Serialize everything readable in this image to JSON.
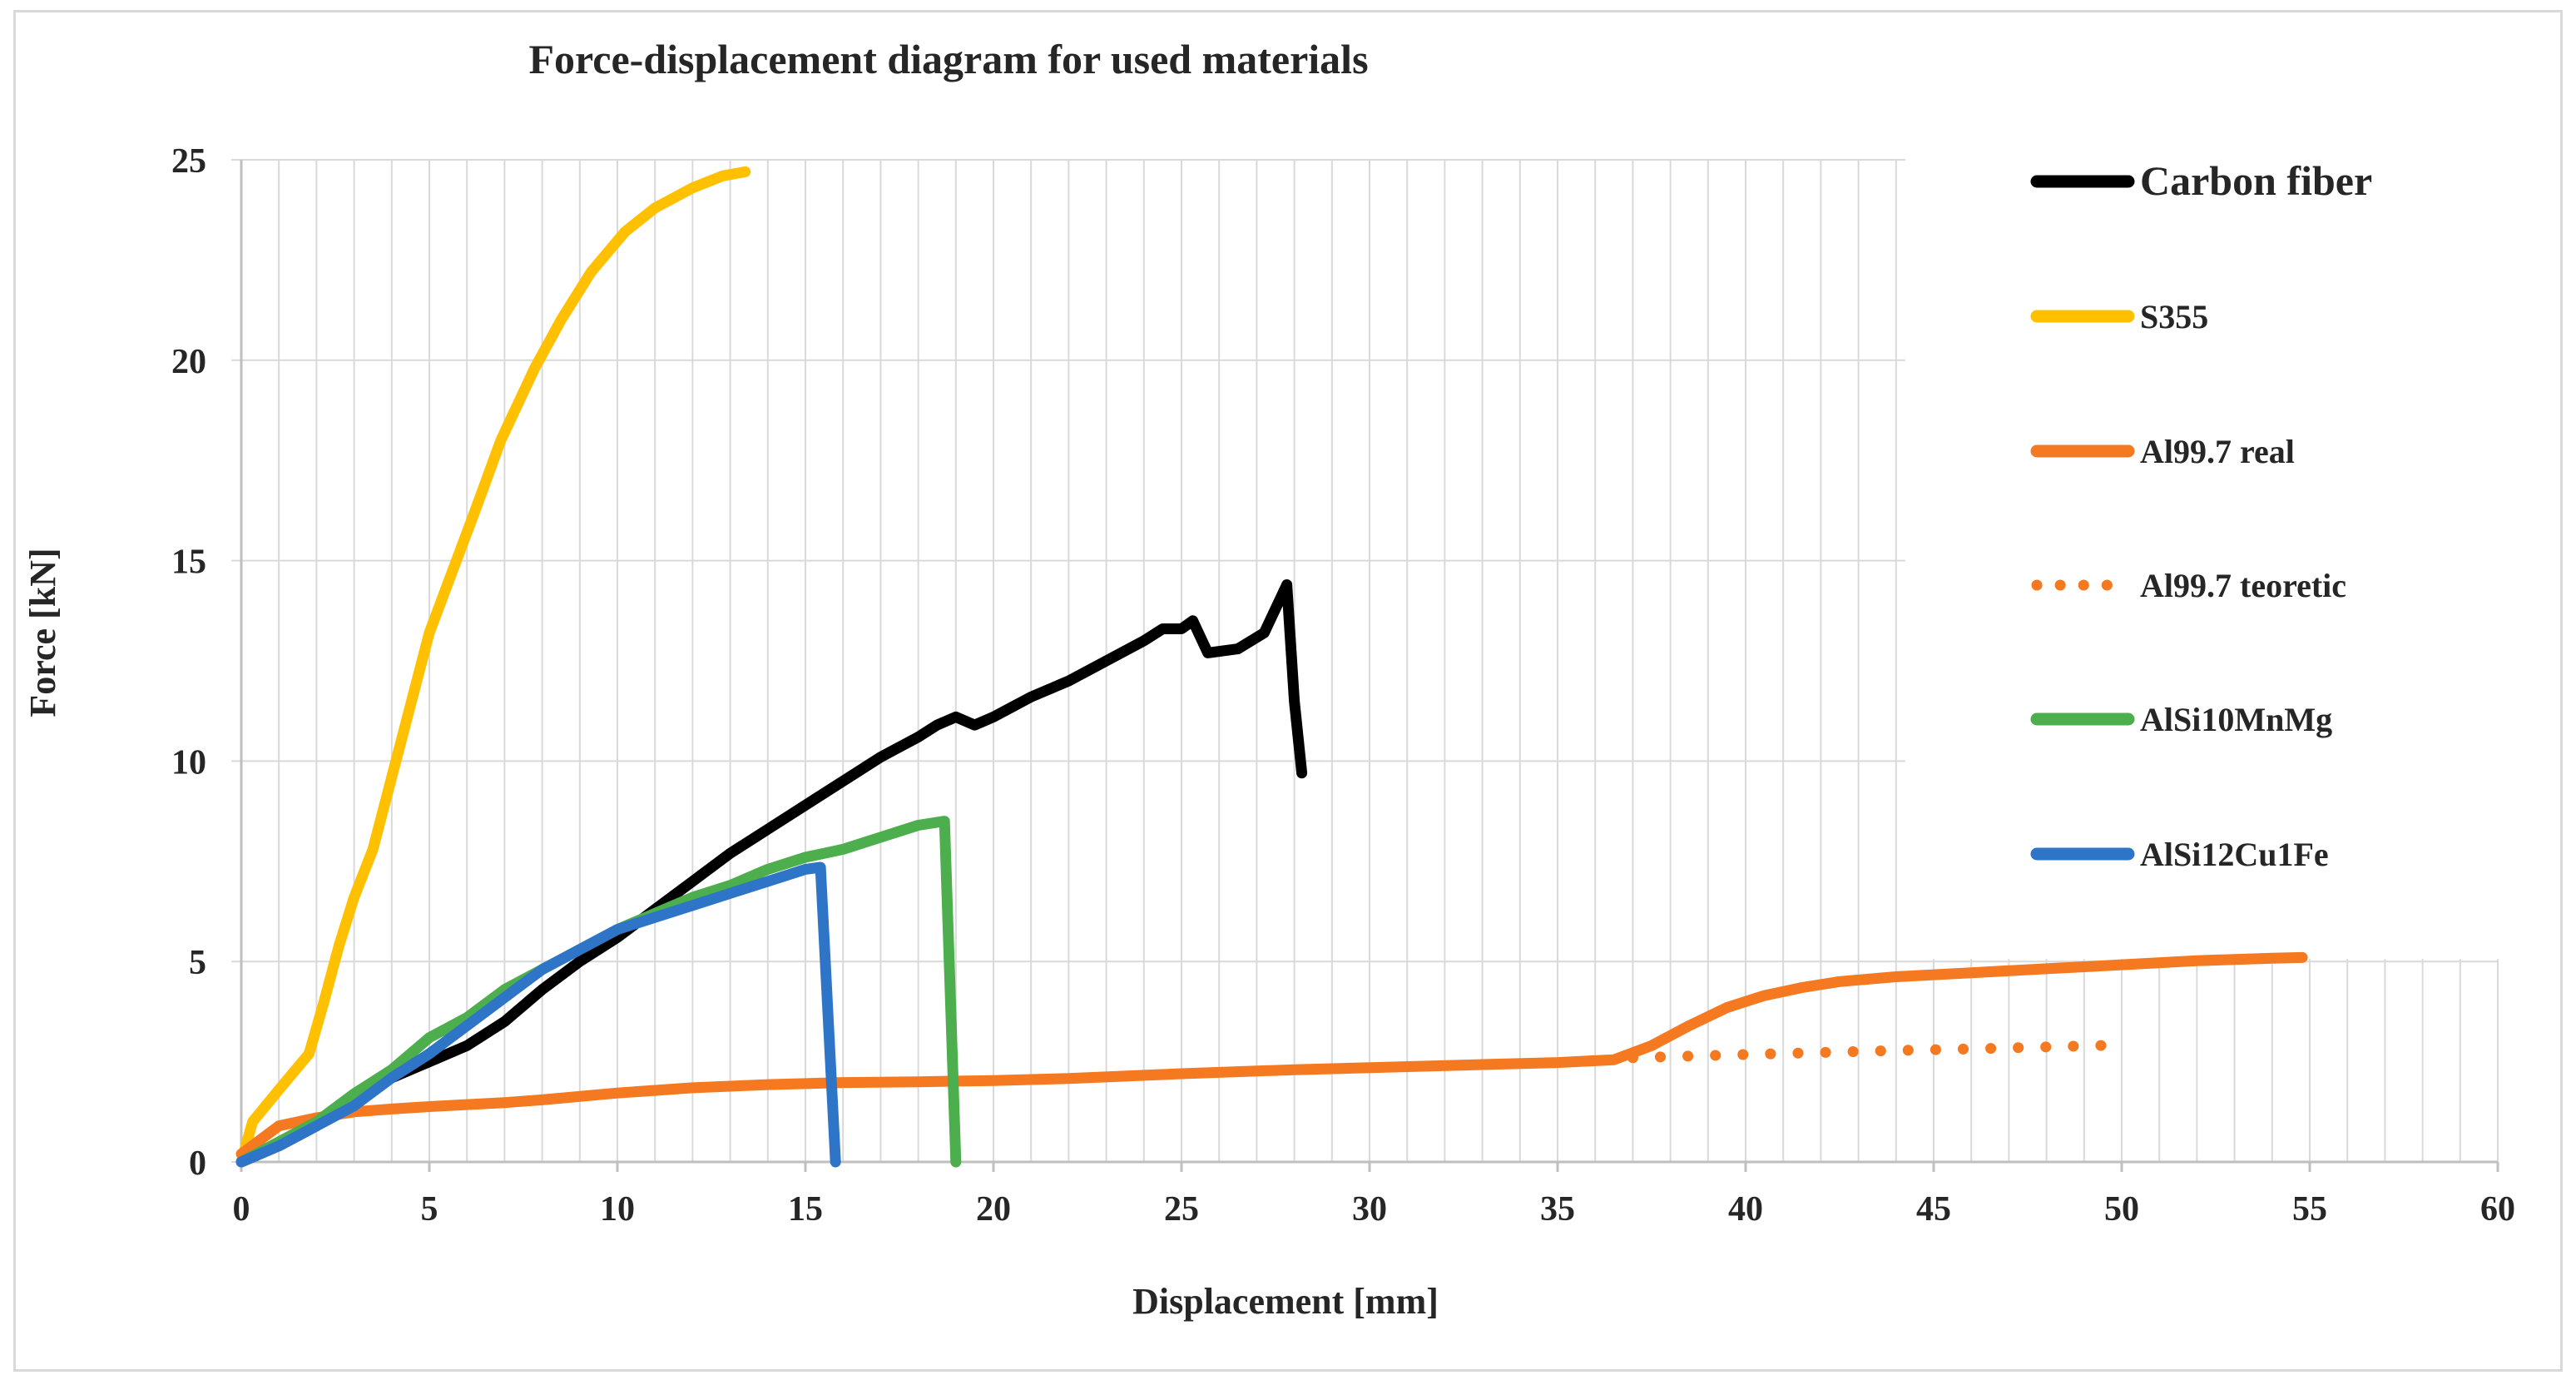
{
  "chart_data": {
    "type": "line",
    "title": "Force-displacement diagram for used materials",
    "xlabel": "Displacement [mm]",
    "ylabel": "Force [kN]",
    "xlim": [
      0,
      60
    ],
    "ylim": [
      0,
      25
    ],
    "xticks": [
      0,
      5,
      10,
      15,
      20,
      25,
      30,
      35,
      40,
      45,
      50,
      55,
      60
    ],
    "yticks": [
      0,
      5,
      10,
      15,
      20,
      25
    ],
    "x_minor_step": 1,
    "y_minor_step": 5,
    "grid": true,
    "legend_position": "right",
    "series": [
      {
        "name": "Carbon fiber",
        "color": "#000000",
        "style": "solid",
        "legend_emphasis": true,
        "points": [
          [
            0,
            0
          ],
          [
            1,
            0.4
          ],
          [
            2,
            0.9
          ],
          [
            3,
            1.5
          ],
          [
            4,
            2.1
          ],
          [
            5,
            2.5
          ],
          [
            6,
            2.9
          ],
          [
            7,
            3.5
          ],
          [
            8,
            4.3
          ],
          [
            9,
            5.0
          ],
          [
            10,
            5.6
          ],
          [
            11,
            6.3
          ],
          [
            12,
            7.0
          ],
          [
            13,
            7.7
          ],
          [
            14,
            8.3
          ],
          [
            15,
            8.9
          ],
          [
            16,
            9.5
          ],
          [
            17,
            10.1
          ],
          [
            18,
            10.6
          ],
          [
            18.5,
            10.9
          ],
          [
            19,
            11.1
          ],
          [
            19.5,
            10.9
          ],
          [
            20,
            11.1
          ],
          [
            21,
            11.6
          ],
          [
            22,
            12.0
          ],
          [
            23,
            12.5
          ],
          [
            24,
            13.0
          ],
          [
            24.5,
            13.3
          ],
          [
            25,
            13.3
          ],
          [
            25.3,
            13.5
          ],
          [
            25.7,
            12.7
          ],
          [
            26.5,
            12.8
          ],
          [
            27.2,
            13.2
          ],
          [
            27.8,
            14.4
          ],
          [
            28.0,
            11.5
          ],
          [
            28.2,
            9.7
          ]
        ]
      },
      {
        "name": "S355",
        "color": "#ffc000",
        "style": "solid",
        "legend_emphasis": false,
        "points": [
          [
            0,
            0
          ],
          [
            0.3,
            1.0
          ],
          [
            1,
            1.8
          ],
          [
            1.8,
            2.7
          ],
          [
            2.2,
            4.0
          ],
          [
            2.6,
            5.4
          ],
          [
            3,
            6.6
          ],
          [
            3.5,
            7.8
          ],
          [
            4,
            9.6
          ],
          [
            4.5,
            11.4
          ],
          [
            5,
            13.2
          ],
          [
            5.6,
            14.7
          ],
          [
            6.2,
            16.2
          ],
          [
            6.9,
            18.0
          ],
          [
            7.8,
            19.8
          ],
          [
            8.5,
            21.0
          ],
          [
            9.3,
            22.2
          ],
          [
            10.2,
            23.2
          ],
          [
            11,
            23.8
          ],
          [
            12,
            24.3
          ],
          [
            12.8,
            24.6
          ],
          [
            13.4,
            24.7
          ]
        ]
      },
      {
        "name": "Al99.7 real",
        "color": "#f47920",
        "style": "solid",
        "legend_emphasis": false,
        "points": [
          [
            0,
            0.2
          ],
          [
            1,
            0.9
          ],
          [
            2,
            1.1
          ],
          [
            3,
            1.25
          ],
          [
            4,
            1.32
          ],
          [
            5,
            1.38
          ],
          [
            6,
            1.43
          ],
          [
            7,
            1.48
          ],
          [
            8,
            1.55
          ],
          [
            10,
            1.72
          ],
          [
            12,
            1.85
          ],
          [
            14,
            1.93
          ],
          [
            16,
            1.98
          ],
          [
            18,
            2.0
          ],
          [
            20,
            2.03
          ],
          [
            22,
            2.08
          ],
          [
            25,
            2.2
          ],
          [
            28,
            2.3
          ],
          [
            30,
            2.35
          ],
          [
            33,
            2.43
          ],
          [
            35,
            2.48
          ],
          [
            36.5,
            2.55
          ],
          [
            37.5,
            2.9
          ],
          [
            38.5,
            3.4
          ],
          [
            39.5,
            3.85
          ],
          [
            40.5,
            4.15
          ],
          [
            41.5,
            4.35
          ],
          [
            42.5,
            4.5
          ],
          [
            44,
            4.62
          ],
          [
            46,
            4.72
          ],
          [
            48,
            4.82
          ],
          [
            50,
            4.92
          ],
          [
            52,
            5.02
          ],
          [
            54,
            5.08
          ],
          [
            54.8,
            5.1
          ]
        ]
      },
      {
        "name": "Al99.7 teoretic",
        "color": "#f47920",
        "style": "dotted",
        "legend_emphasis": false,
        "points": [
          [
            37,
            2.6
          ],
          [
            40,
            2.68
          ],
          [
            42,
            2.73
          ],
          [
            44,
            2.78
          ],
          [
            46,
            2.82
          ],
          [
            48,
            2.87
          ],
          [
            50,
            2.92
          ]
        ]
      },
      {
        "name": "AlSi10MnMg",
        "color": "#4cae4c",
        "style": "solid",
        "legend_emphasis": false,
        "points": [
          [
            0,
            0
          ],
          [
            1,
            0.5
          ],
          [
            2,
            1.0
          ],
          [
            3,
            1.7
          ],
          [
            4,
            2.3
          ],
          [
            5,
            3.1
          ],
          [
            6,
            3.6
          ],
          [
            7,
            4.3
          ],
          [
            8,
            4.8
          ],
          [
            9,
            5.3
          ],
          [
            10,
            5.8
          ],
          [
            11,
            6.2
          ],
          [
            12,
            6.6
          ],
          [
            13,
            6.9
          ],
          [
            14,
            7.3
          ],
          [
            15,
            7.6
          ],
          [
            16,
            7.8
          ],
          [
            17,
            8.1
          ],
          [
            18,
            8.4
          ],
          [
            18.7,
            8.5
          ],
          [
            19,
            0
          ]
        ]
      },
      {
        "name": "AlSi12Cu1Fe",
        "color": "#2e75c8",
        "style": "solid",
        "legend_emphasis": false,
        "points": [
          [
            0,
            0
          ],
          [
            1,
            0.4
          ],
          [
            2,
            0.9
          ],
          [
            3,
            1.4
          ],
          [
            4,
            2.1
          ],
          [
            5,
            2.7
          ],
          [
            6,
            3.4
          ],
          [
            7,
            4.1
          ],
          [
            8,
            4.8
          ],
          [
            9,
            5.3
          ],
          [
            10,
            5.8
          ],
          [
            11,
            6.1
          ],
          [
            12,
            6.4
          ],
          [
            13,
            6.7
          ],
          [
            14,
            7.0
          ],
          [
            15,
            7.3
          ],
          [
            15.4,
            7.35
          ],
          [
            15.8,
            0
          ]
        ]
      }
    ]
  }
}
